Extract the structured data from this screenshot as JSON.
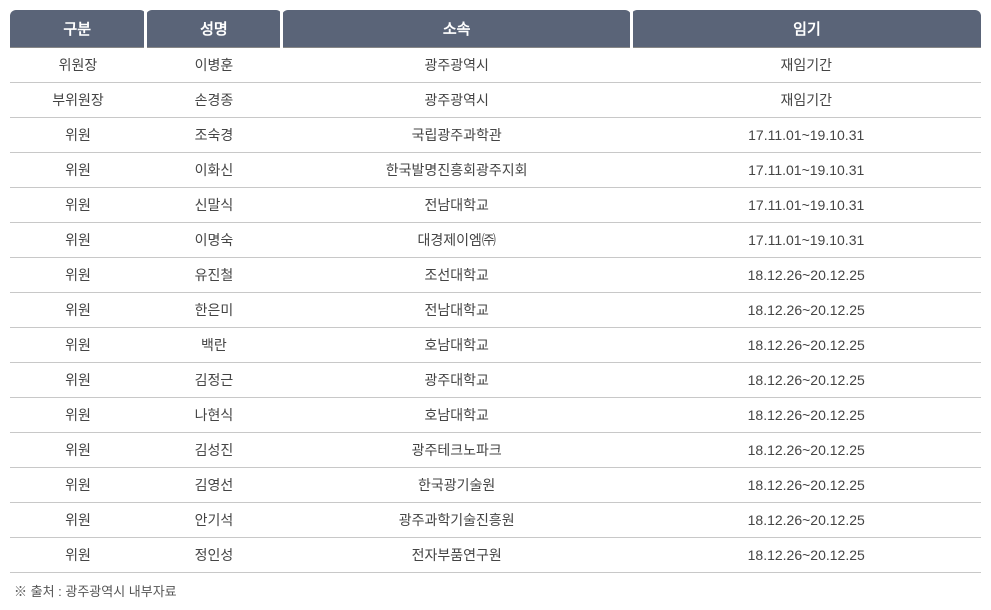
{
  "table": {
    "header_bg": "#5a6478",
    "header_fg": "#ffffff",
    "border_color": "#c8c8c8",
    "columns": [
      {
        "label": "구분",
        "width_pct": 14
      },
      {
        "label": "성명",
        "width_pct": 14
      },
      {
        "label": "소속",
        "width_pct": 36
      },
      {
        "label": "임기",
        "width_pct": 36
      }
    ],
    "rows": [
      [
        "위원장",
        "이병훈",
        "광주광역시",
        "재임기간"
      ],
      [
        "부위원장",
        "손경종",
        "광주광역시",
        "재임기간"
      ],
      [
        "위원",
        "조숙경",
        "국립광주과학관",
        "17.11.01~19.10.31"
      ],
      [
        "위원",
        "이화신",
        "한국발명진흥회광주지회",
        "17.11.01~19.10.31"
      ],
      [
        "위원",
        "신말식",
        "전남대학교",
        "17.11.01~19.10.31"
      ],
      [
        "위원",
        "이명숙",
        "대경제이엠㈜",
        "17.11.01~19.10.31"
      ],
      [
        "위원",
        "유진철",
        "조선대학교",
        "18.12.26~20.12.25"
      ],
      [
        "위원",
        "한은미",
        "전남대학교",
        "18.12.26~20.12.25"
      ],
      [
        "위원",
        "백란",
        "호남대학교",
        "18.12.26~20.12.25"
      ],
      [
        "위원",
        "김정근",
        "광주대학교",
        "18.12.26~20.12.25"
      ],
      [
        "위원",
        "나현식",
        "호남대학교",
        "18.12.26~20.12.25"
      ],
      [
        "위원",
        "김성진",
        "광주테크노파크",
        "18.12.26~20.12.25"
      ],
      [
        "위원",
        "김영선",
        "한국광기술원",
        "18.12.26~20.12.25"
      ],
      [
        "위원",
        "안기석",
        "광주과학기술진흥원",
        "18.12.26~20.12.25"
      ],
      [
        "위원",
        "정인성",
        "전자부품연구원",
        "18.12.26~20.12.25"
      ]
    ]
  },
  "footnote": "※ 출처 : 광주광역시 내부자료"
}
